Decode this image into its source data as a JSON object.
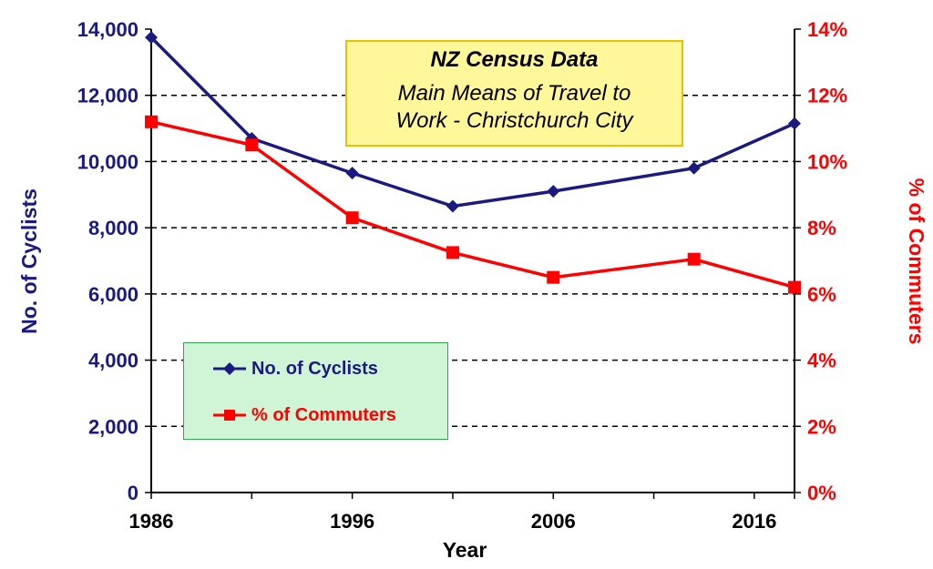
{
  "chart_data": {
    "type": "line",
    "title": "NZ Census Data",
    "subtitle_lines": [
      "Main Means of Travel to",
      "Work - Christchurch City"
    ],
    "xlabel": "Year",
    "ylabel_left": "No. of Cyclists",
    "ylabel_right": "% of Commuters",
    "xlim": [
      1986,
      2018
    ],
    "ylim_left": [
      0,
      14000
    ],
    "ylim_right": [
      0,
      14
    ],
    "x_ticks": [
      1986,
      1996,
      2006,
      2016
    ],
    "x_tick_labels": [
      "1986",
      "1996",
      "2006",
      "2016"
    ],
    "y_left_ticks": [
      "0",
      "2,000",
      "4,000",
      "6,000",
      "8,000",
      "10,000",
      "12,000",
      "14,000"
    ],
    "y_right_ticks": [
      "0%",
      "2%",
      "4%",
      "6%",
      "8%",
      "10%",
      "12%",
      "14%"
    ],
    "grid": "horizontal dashed",
    "legend_position": "center-left",
    "series": [
      {
        "name": "No. of Cyclists",
        "axis": "left",
        "color": "#1a1a80",
        "marker": "diamond",
        "x": [
          1986,
          1991,
          1996,
          2001,
          2006,
          2013,
          2018
        ],
        "values": [
          13750,
          10700,
          9650,
          8650,
          9100,
          9800,
          11150
        ]
      },
      {
        "name": "% of Commuters",
        "axis": "right",
        "color": "#ff0000",
        "marker": "square",
        "x": [
          1986,
          1991,
          1996,
          2001,
          2006,
          2013,
          2018
        ],
        "values": [
          11.2,
          10.5,
          8.3,
          7.25,
          6.5,
          7.05,
          6.2
        ]
      }
    ]
  },
  "colors": {
    "left_axis": "#1a1a80",
    "right_axis": "#ff0000",
    "title_box_fill": "#fff799",
    "legend_fill": "#cff5d6"
  }
}
